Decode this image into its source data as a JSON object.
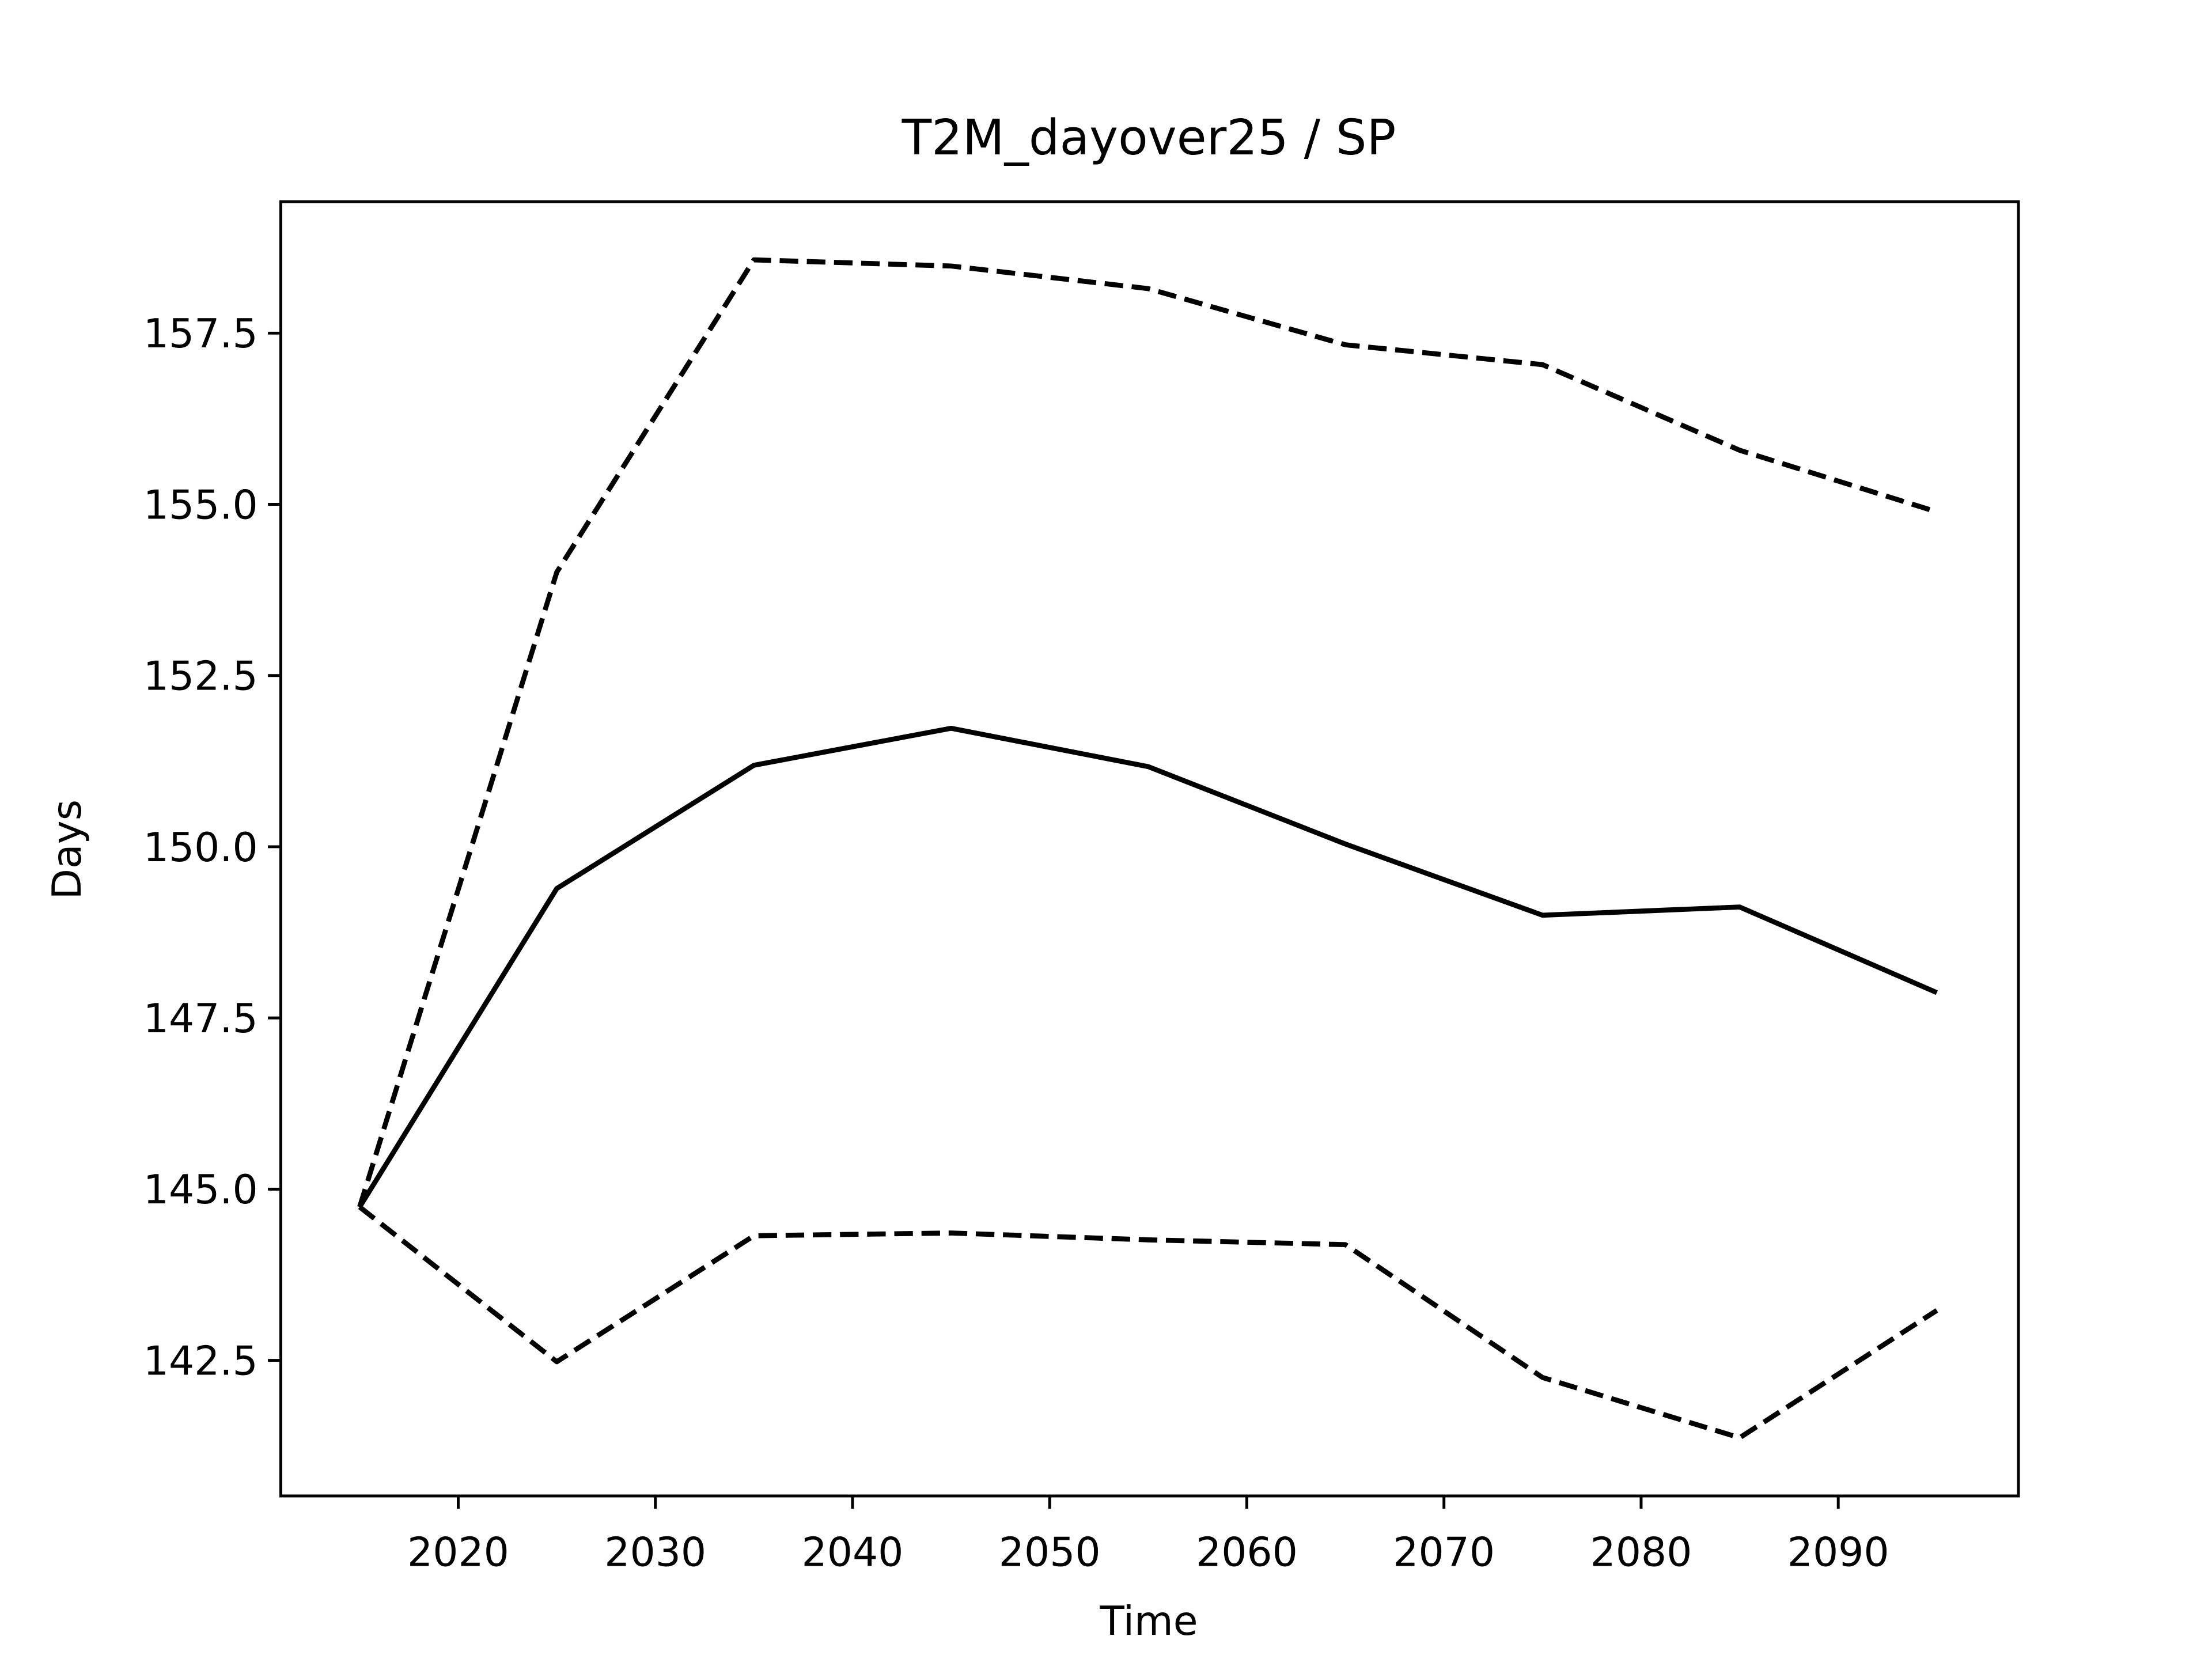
{
  "chart_data": {
    "type": "line",
    "title": "T2M_dayover25 / SP",
    "xlabel": "Time",
    "ylabel": "Days",
    "x": [
      2015,
      2025,
      2035,
      2045,
      2055,
      2065,
      2075,
      2085,
      2095
    ],
    "series": [
      {
        "color": "#000000",
        "style": "solid",
        "values": [
          144.74,
          149.39,
          151.19,
          151.73,
          151.17,
          150.04,
          149.0,
          149.12,
          147.87
        ]
      },
      {
        "color": "#000000",
        "style": "dashed",
        "values": [
          144.74,
          154.01,
          158.57,
          158.48,
          158.15,
          157.33,
          157.04,
          155.79,
          154.89
        ]
      },
      {
        "color": "#000000",
        "style": "dashed",
        "values": [
          144.74,
          142.48,
          144.32,
          144.36,
          144.26,
          144.19,
          142.25,
          141.37,
          143.23
        ]
      }
    ],
    "xlim": [
      2011,
      2099.14
    ],
    "xticks": [
      2020,
      2030,
      2040,
      2050,
      2060,
      2070,
      2080,
      2090
    ],
    "ylim": [
      140.52,
      159.42
    ],
    "yticks": [
      142.5,
      {
        "value": 145,
        "label": "145.0"
      },
      147.5,
      {
        "value": 150,
        "label": "150.0"
      },
      152.5,
      {
        "value": 155,
        "label": "155.0"
      },
      157.5
    ],
    "grid": false
  }
}
